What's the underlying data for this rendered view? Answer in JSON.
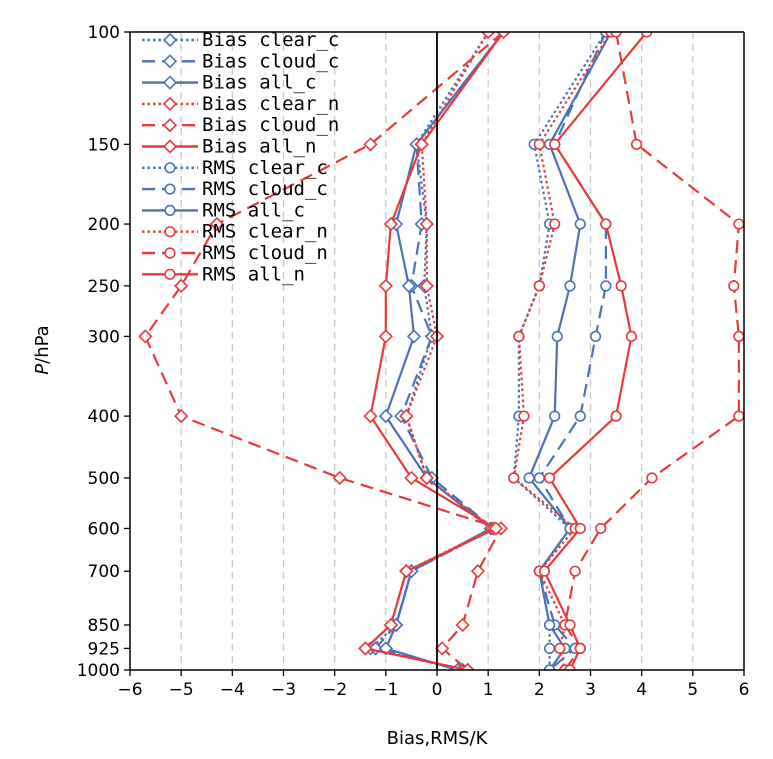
{
  "chart_data": {
    "type": "line",
    "xlabel": "Bias,RMS/K",
    "ylabel": "P/hPa",
    "ylabel_italic": "P",
    "ylabel_unit": "/hPa",
    "xlim": [
      -6,
      6
    ],
    "ylim": [
      1000,
      100
    ],
    "y_scale": "log",
    "x_ticks": [
      "−6",
      "−5",
      "−4",
      "−3",
      "−2",
      "−1",
      "0",
      "1",
      "2",
      "3",
      "4",
      "5",
      "6"
    ],
    "y_ticks": [
      "100",
      "150",
      "200",
      "250",
      "300",
      "400",
      "500",
      "600",
      "700",
      "850",
      "925",
      "1000"
    ],
    "levels": [
      100,
      150,
      200,
      250,
      300,
      400,
      500,
      600,
      700,
      850,
      925,
      1000
    ],
    "grid": "vertical dashed",
    "legend_position": "top-left",
    "colors": {
      "blue": "#4a72b8",
      "red": "#e83a3a"
    },
    "series": [
      {
        "name": "Bias clear_c",
        "color": "#4a72b8",
        "dash": "dotted",
        "marker": "diamond",
        "values": [
          1.0,
          -0.4,
          -0.2,
          -0.25,
          -0.1,
          -0.6,
          -0.2,
          1.1,
          -0.5,
          -0.8,
          -1.3,
          0.5
        ]
      },
      {
        "name": "Bias cloud_c",
        "color": "#4a72b8",
        "dash": "dashed",
        "marker": "diamond",
        "values": [
          1.3,
          -0.4,
          -0.3,
          -0.5,
          -0.1,
          -0.7,
          -0.1,
          1.1,
          -0.5,
          -0.8,
          -1.2,
          0.5
        ]
      },
      {
        "name": "Bias all_c",
        "color": "#4a72b8",
        "dash": "solid",
        "marker": "diamond",
        "values": [
          1.3,
          -0.4,
          -0.8,
          -0.55,
          -0.45,
          -1.0,
          -0.2,
          1.05,
          -0.5,
          -0.8,
          -1.0,
          0.4
        ]
      },
      {
        "name": "Bias clear_n",
        "color": "#e83a3a",
        "dash": "dotted",
        "marker": "diamond",
        "values": [
          1.0,
          -0.3,
          -0.2,
          -0.2,
          0.0,
          -0.6,
          -0.2,
          1.1,
          -0.6,
          -0.9,
          -1.4,
          0.6
        ]
      },
      {
        "name": "Bias cloud_n",
        "color": "#e83a3a",
        "dash": "dashed",
        "marker": "diamond",
        "values": [
          1.3,
          -1.3,
          -4.3,
          -5.0,
          -5.7,
          -5.0,
          -1.9,
          1.25,
          0.8,
          0.5,
          0.1,
          0.6
        ]
      },
      {
        "name": "Bias all_n",
        "color": "#e83a3a",
        "dash": "solid",
        "marker": "diamond",
        "values": [
          1.3,
          -0.3,
          -0.9,
          -1.0,
          -1.0,
          -1.3,
          -0.5,
          1.15,
          -0.6,
          -0.9,
          -1.4,
          0.6
        ]
      },
      {
        "name": "RMS clear_c",
        "color": "#4a72b8",
        "dash": "dotted",
        "marker": "circle",
        "values": [
          3.3,
          1.9,
          2.2,
          2.0,
          1.6,
          1.6,
          1.5,
          2.6,
          2.0,
          2.2,
          2.2,
          2.2
        ]
      },
      {
        "name": "RMS cloud_c",
        "color": "#4a72b8",
        "dash": "dashed",
        "marker": "circle",
        "values": [
          3.3,
          2.3,
          3.3,
          3.3,
          3.1,
          2.8,
          2.0,
          2.6,
          2.0,
          2.3,
          2.7,
          2.2
        ]
      },
      {
        "name": "RMS all_c",
        "color": "#4a72b8",
        "dash": "solid",
        "marker": "circle",
        "values": [
          3.4,
          2.2,
          2.8,
          2.6,
          2.35,
          2.3,
          1.8,
          2.6,
          2.0,
          2.2,
          2.5,
          2.2
        ]
      },
      {
        "name": "RMS clear_n",
        "color": "#e83a3a",
        "dash": "dotted",
        "marker": "circle",
        "values": [
          3.4,
          2.0,
          2.3,
          2.0,
          1.6,
          1.7,
          1.5,
          2.7,
          2.0,
          2.5,
          2.4,
          2.5
        ]
      },
      {
        "name": "RMS cloud_n",
        "color": "#e83a3a",
        "dash": "dashed",
        "marker": "circle",
        "values": [
          3.5,
          3.9,
          5.9,
          5.8,
          5.9,
          5.9,
          4.2,
          3.2,
          2.7,
          2.5,
          2.8,
          2.5
        ]
      },
      {
        "name": "RMS all_n",
        "color": "#e83a3a",
        "dash": "solid",
        "marker": "circle",
        "values": [
          4.1,
          2.3,
          3.3,
          3.6,
          3.8,
          3.5,
          2.2,
          2.8,
          2.1,
          2.6,
          2.8,
          2.6
        ]
      }
    ]
  }
}
